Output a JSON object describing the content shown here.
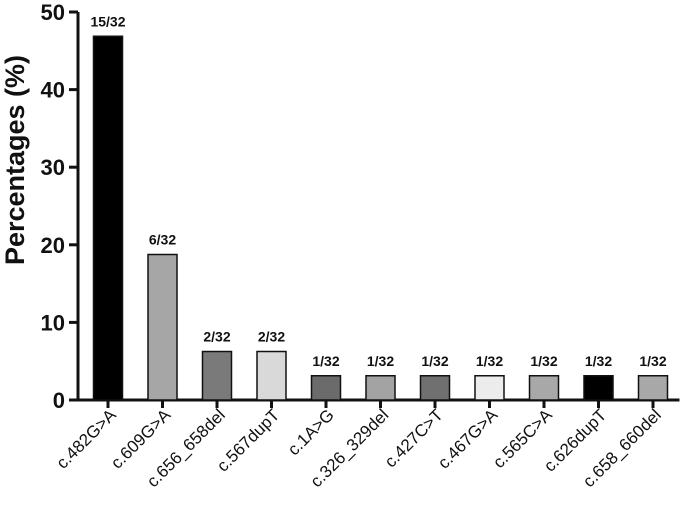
{
  "chart_data": {
    "type": "bar",
    "ylabel": "Percentages (%)",
    "xlabel": "",
    "ylim": [
      0,
      50
    ],
    "yticks": [
      "0",
      "10",
      "20",
      "30",
      "40",
      "50"
    ],
    "categories": [
      "c.482G>A",
      "c.609G>A",
      "c.656_658del",
      "c.567dupT",
      "c.1A>G",
      "c.326_329del",
      "c.427C>T",
      "c.467G>A",
      "c.565C>A",
      "c.626dupT",
      "c.658_660del"
    ],
    "values": [
      46.875,
      18.75,
      6.25,
      6.25,
      3.125,
      3.125,
      3.125,
      3.125,
      3.125,
      3.125,
      3.125
    ],
    "data_labels": [
      "15/32",
      "6/32",
      "2/32",
      "2/32",
      "1/32",
      "1/32",
      "1/32",
      "1/32",
      "1/32",
      "1/32",
      "1/32"
    ],
    "bar_colors": [
      "#000000",
      "#a6a6a6",
      "#7a7a7a",
      "#d9d9d9",
      "#6b6b6b",
      "#a3a3a3",
      "#707070",
      "#ececec",
      "#a8a8a8",
      "#000000",
      "#a8a8a8"
    ],
    "grid": false,
    "legend": "none"
  }
}
